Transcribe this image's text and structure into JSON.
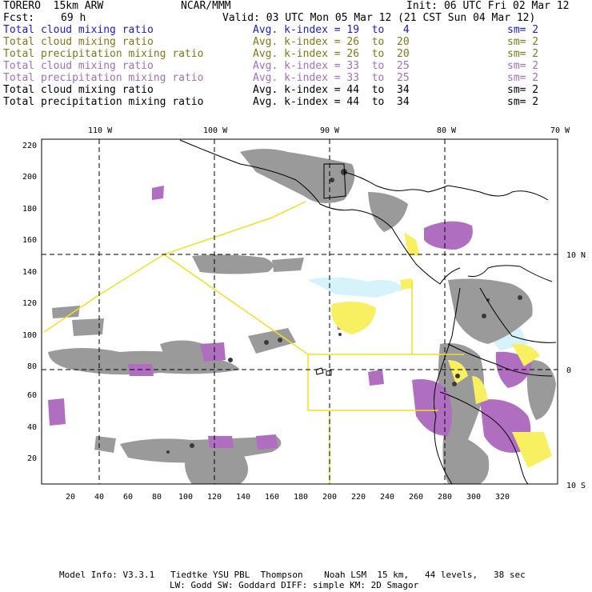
{
  "header": {
    "model": "TORERO  15km ARW",
    "org": "NCAR/MMM",
    "init": "Init: 06 UTC Fri 02 Mar 12",
    "fcst_label": "Fcst:",
    "fcst_value": "69 h",
    "valid": "Valid: 03 UTC Mon 05 Mar 12 (21 CST Sun 04 Mar 12)"
  },
  "legend": [
    {
      "label": "Total cloud mixing ratio",
      "avg": "Avg. k-index =",
      "from": "19",
      "to_word": "to",
      "to": "4",
      "sm": "sm= 2",
      "color": "#1a1ad0"
    },
    {
      "label": "Total cloud mixing ratio",
      "avg": "Avg. k-index =",
      "from": "26",
      "to_word": "to",
      "to": "20",
      "sm": "sm= 2",
      "color": "#7c7a18"
    },
    {
      "label": "Total precipitation mixing ratio",
      "avg": "Avg. k-index =",
      "from": "26",
      "to_word": "to",
      "to": "20",
      "sm": "sm= 2",
      "color": "#7c7a18"
    },
    {
      "label": "Total cloud mixing ratio",
      "avg": "Avg. k-index =",
      "from": "33",
      "to_word": "to",
      "to": "25",
      "sm": "sm= 2",
      "color": "#a070b8"
    },
    {
      "label": "Total precipitation mixing ratio",
      "avg": "Avg. k-index =",
      "from": "33",
      "to_word": "to",
      "to": "25",
      "sm": "sm= 2",
      "color": "#a070b8"
    },
    {
      "label": "Total cloud mixing ratio",
      "avg": "Avg. k-index =",
      "from": "44",
      "to_word": "to",
      "to": "34",
      "sm": "sm= 2",
      "color": "#000000"
    },
    {
      "label": "Total precipitation mixing ratio",
      "avg": "Avg. k-index =",
      "from": "44",
      "to_word": "to",
      "to": "34",
      "sm": "sm= 2",
      "color": "#000000"
    }
  ],
  "axes": {
    "top_lon_labels": [
      "110 W",
      "100 W",
      "90 W",
      "80 W",
      "70 W"
    ],
    "right_lat_labels": [
      "10 N",
      "0",
      "10 S"
    ],
    "left_ticks": [
      "220",
      "200",
      "180",
      "160",
      "140",
      "120",
      "100",
      "80",
      "60",
      "40",
      "20"
    ],
    "bottom_ticks": [
      "20",
      "40",
      "60",
      "80",
      "100",
      "120",
      "140",
      "160",
      "180",
      "200",
      "220",
      "240",
      "260",
      "280",
      "300",
      "320"
    ]
  },
  "colors": {
    "cloud_gray": "#9a9a9a",
    "dark_core": "#3a3a3a",
    "purple": "#b06ec0",
    "yellow": "#f8f060",
    "cyan": "#d6f2fa",
    "domain_line": "#f0e020"
  },
  "footer": {
    "line1": "Model Info: V3.3.1   Tiedtke YSU PBL  Thompson    Noah LSM  15 km,   44 levels,   38 sec",
    "line2": "LW: Godd SW: Goddard DIFF: simple KM: 2D Smagor"
  }
}
